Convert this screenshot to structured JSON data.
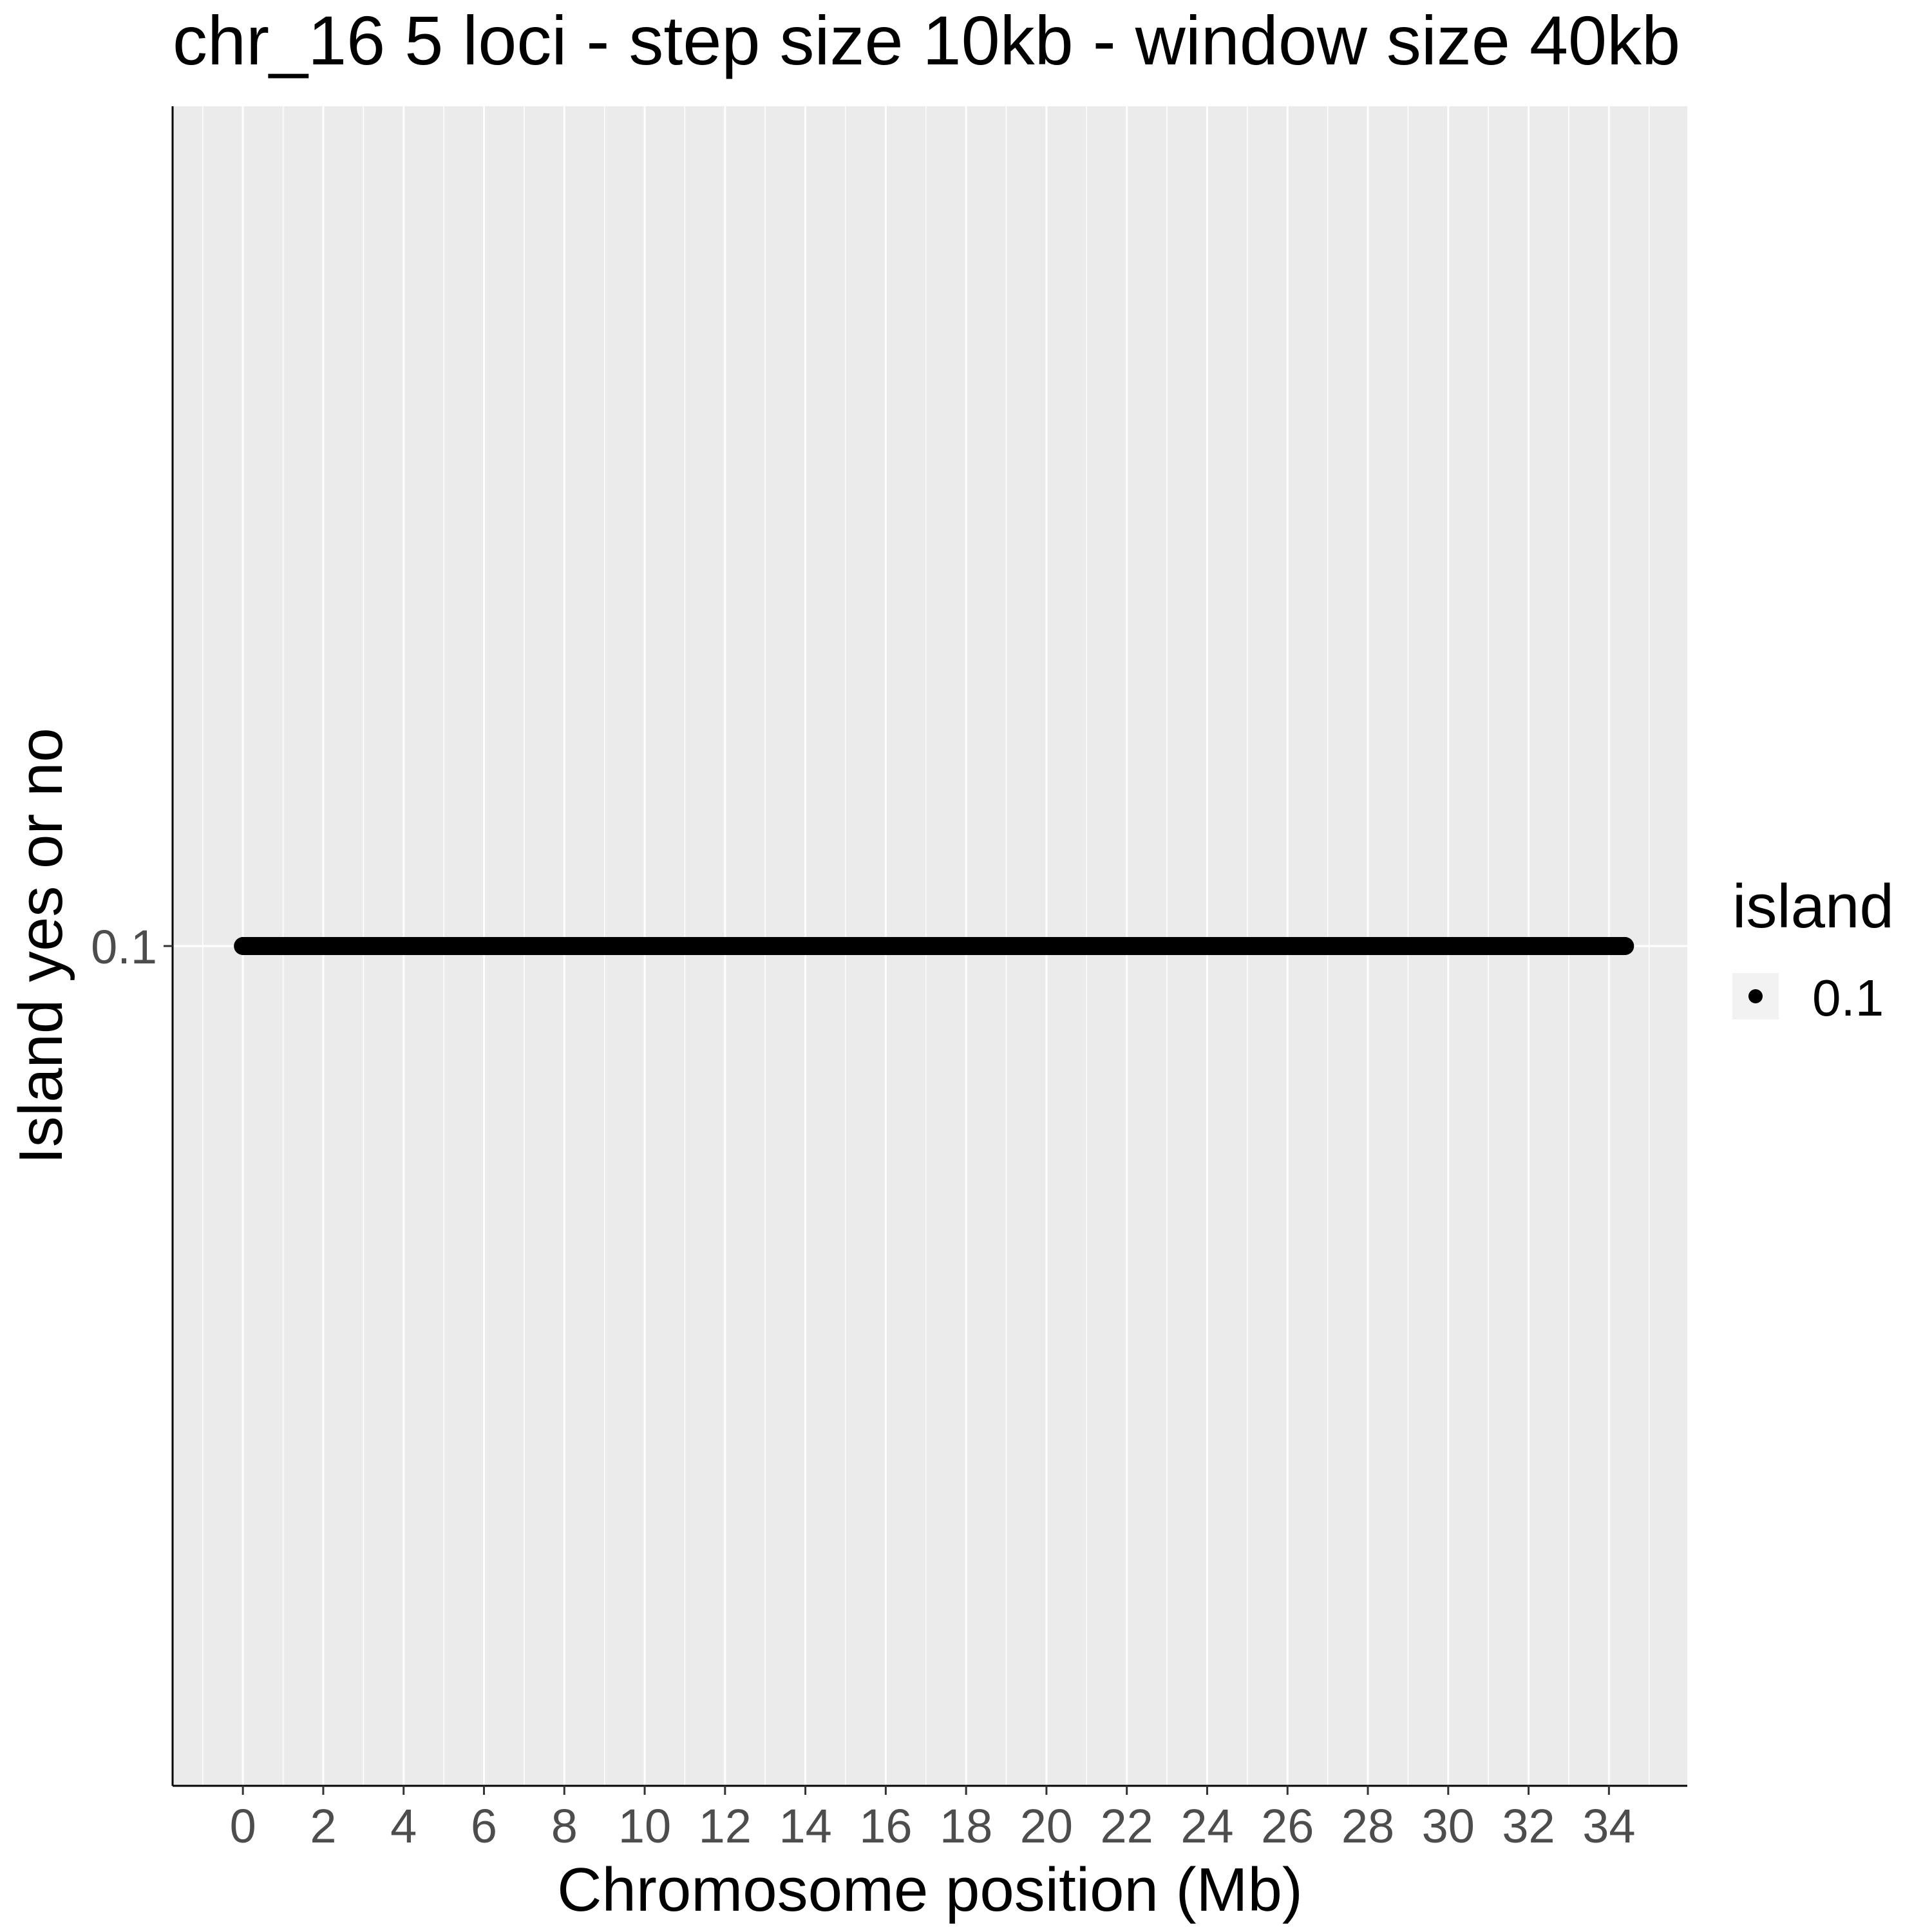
{
  "chart_data": {
    "type": "scatter",
    "title": "chr_16 5 loci - step size 10kb - window size 40kb",
    "xlabel": "Chromosome position (Mb)",
    "ylabel": "Island yes or no",
    "xlim": [
      -1.75,
      35.95
    ],
    "x_ticks": [
      0,
      2,
      4,
      6,
      8,
      10,
      12,
      14,
      16,
      18,
      20,
      22,
      24,
      26,
      28,
      30,
      32,
      34
    ],
    "x_tick_labels": [
      "0",
      "2",
      "4",
      "6",
      "8",
      "10",
      "12",
      "14",
      "16",
      "18",
      "20",
      "22",
      "24",
      "26",
      "28",
      "30",
      "32",
      "34"
    ],
    "y_ticks": [
      0.1
    ],
    "y_tick_labels": [
      "0.1"
    ],
    "grid": true,
    "legend": {
      "title": "island",
      "placement": "right",
      "entries": [
        {
          "label": "0.1",
          "color": "#000000"
        }
      ]
    },
    "series": [
      {
        "name": "0.1",
        "color": "#000000",
        "x_start": 0,
        "x_end": 34.4,
        "x_step": 0.01,
        "y": 0.1
      }
    ],
    "colors": {
      "panel_background": "#ebebeb",
      "gridline": "#ffffff",
      "axis_text": "#4d4d4d",
      "text": "#000000"
    }
  }
}
